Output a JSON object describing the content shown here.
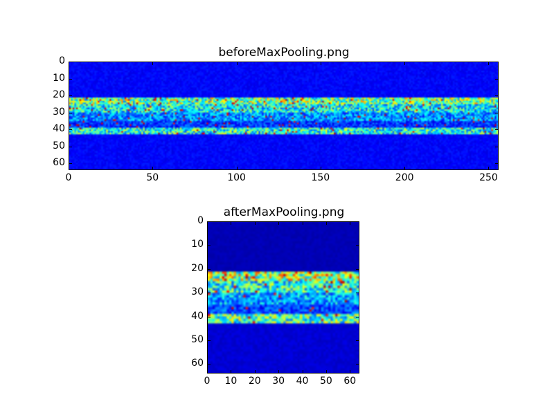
{
  "chart_data": [
    {
      "type": "heatmap",
      "title": "beforeMaxPooling.png",
      "colormap": "jet",
      "rows": 64,
      "cols": 256,
      "xlim": [
        0,
        256
      ],
      "ylim": [
        64,
        0
      ],
      "xticks": [
        "0",
        "50",
        "100",
        "150",
        "200",
        "250"
      ],
      "yticks": [
        "0",
        "10",
        "20",
        "30",
        "40",
        "50",
        "60"
      ],
      "row_intensity_profile": [
        {
          "rows": [
            0,
            20
          ],
          "level": 0.12
        },
        {
          "rows": [
            21,
            24
          ],
          "level": 0.55
        },
        {
          "rows": [
            25,
            29
          ],
          "level": 0.42
        },
        {
          "rows": [
            30,
            34
          ],
          "level": 0.3
        },
        {
          "rows": [
            35,
            38
          ],
          "level": 0.2
        },
        {
          "rows": [
            39,
            42
          ],
          "level": 0.45
        },
        {
          "rows": [
            43,
            63
          ],
          "level": 0.12
        }
      ],
      "grid": false
    },
    {
      "type": "heatmap",
      "title": "afterMaxPooling.png",
      "colormap": "jet",
      "rows": 64,
      "cols": 64,
      "xlim": [
        0,
        64
      ],
      "ylim": [
        64,
        0
      ],
      "xticks": [
        "0",
        "10",
        "20",
        "30",
        "40",
        "50",
        "60"
      ],
      "yticks": [
        "0",
        "10",
        "20",
        "30",
        "40",
        "50",
        "60"
      ],
      "row_intensity_profile": [
        {
          "rows": [
            0,
            20
          ],
          "level": 0.05
        },
        {
          "rows": [
            21,
            24
          ],
          "level": 0.6
        },
        {
          "rows": [
            25,
            29
          ],
          "level": 0.45
        },
        {
          "rows": [
            30,
            34
          ],
          "level": 0.33
        },
        {
          "rows": [
            35,
            38
          ],
          "level": 0.22
        },
        {
          "rows": [
            39,
            42
          ],
          "level": 0.5
        },
        {
          "rows": [
            43,
            63
          ],
          "level": 0.08
        }
      ],
      "grid": false
    }
  ]
}
